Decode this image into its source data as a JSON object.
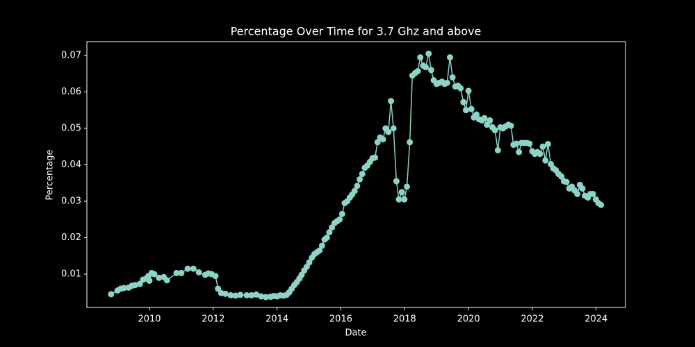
{
  "chart_data": {
    "type": "line",
    "title": "Percentage Over Time for 3.7 Ghz and above",
    "x_label": "Date",
    "y_label": "Percentage",
    "color": "#8dd3c7",
    "xlim": [
      2008.04,
      2024.92
    ],
    "ylim": [
      0.00086,
      0.0738
    ],
    "xticks": [
      2010,
      2012,
      2014,
      2016,
      2018,
      2020,
      2022,
      2024
    ],
    "yticks": [
      0.01,
      0.02,
      0.03,
      0.04,
      0.05,
      0.06,
      0.07
    ],
    "x": [
      2008.8,
      2009.0,
      2009.1,
      2009.2,
      2009.35,
      2009.45,
      2009.55,
      2009.7,
      2009.8,
      2009.9,
      2009.97,
      2010.0,
      2010.07,
      2010.15,
      2010.3,
      2010.45,
      2010.55,
      2010.85,
      2011.0,
      2011.2,
      2011.38,
      2011.55,
      2011.75,
      2011.85,
      2011.95,
      2012.07,
      2012.15,
      2012.25,
      2012.38,
      2012.55,
      2012.7,
      2012.85,
      2013.05,
      2013.2,
      2013.35,
      2013.5,
      2013.65,
      2013.8,
      2013.9,
      2014.0,
      2014.1,
      2014.2,
      2014.3,
      2014.38,
      2014.46,
      2014.54,
      2014.62,
      2014.7,
      2014.77,
      2014.85,
      2014.93,
      2015.01,
      2015.09,
      2015.17,
      2015.25,
      2015.33,
      2015.41,
      2015.49,
      2015.56,
      2015.64,
      2015.72,
      2015.8,
      2015.88,
      2015.96,
      2016.04,
      2016.12,
      2016.2,
      2016.28,
      2016.35,
      2016.43,
      2016.51,
      2016.59,
      2016.67,
      2016.75,
      2016.83,
      2016.91,
      2016.99,
      2017.07,
      2017.15,
      2017.23,
      2017.32,
      2017.4,
      2017.49,
      2017.57,
      2017.65,
      2017.74,
      2017.82,
      2017.91,
      2017.99,
      2018.07,
      2018.16,
      2018.24,
      2018.33,
      2018.41,
      2018.49,
      2018.58,
      2018.66,
      2018.75,
      2018.83,
      2018.91,
      2019.0,
      2019.08,
      2019.17,
      2019.25,
      2019.33,
      2019.42,
      2019.5,
      2019.59,
      2019.67,
      2019.75,
      2019.84,
      2019.92,
      2020.0,
      2020.09,
      2020.17,
      2020.25,
      2020.33,
      2020.42,
      2020.5,
      2020.58,
      2020.67,
      2020.75,
      2020.83,
      2020.92,
      2021.0,
      2021.08,
      2021.16,
      2021.25,
      2021.33,
      2021.41,
      2021.5,
      2021.58,
      2021.66,
      2021.75,
      2021.83,
      2021.91,
      2022.0,
      2022.08,
      2022.16,
      2022.24,
      2022.33,
      2022.41,
      2022.49,
      2022.58,
      2022.66,
      2022.74,
      2022.82,
      2022.91,
      2022.99,
      2023.07,
      2023.16,
      2023.24,
      2023.32,
      2023.41,
      2023.49,
      2023.57,
      2023.65,
      2023.74,
      2023.82,
      2023.9,
      2023.99,
      2024.07,
      2024.15
    ],
    "values": [
      0.0045,
      0.0055,
      0.006,
      0.0062,
      0.0063,
      0.0068,
      0.007,
      0.0073,
      0.0085,
      0.0088,
      0.0095,
      0.0082,
      0.0103,
      0.01,
      0.009,
      0.0092,
      0.0083,
      0.0103,
      0.0103,
      0.0115,
      0.0115,
      0.0105,
      0.0098,
      0.0102,
      0.01,
      0.0095,
      0.006,
      0.0048,
      0.0046,
      0.0042,
      0.0041,
      0.0043,
      0.0042,
      0.0042,
      0.0044,
      0.0039,
      0.0037,
      0.0038,
      0.004,
      0.0039,
      0.0042,
      0.0041,
      0.0043,
      0.005,
      0.006,
      0.007,
      0.0078,
      0.0088,
      0.0098,
      0.011,
      0.012,
      0.0132,
      0.0145,
      0.0155,
      0.016,
      0.0165,
      0.0178,
      0.0195,
      0.02,
      0.0215,
      0.0228,
      0.024,
      0.0245,
      0.025,
      0.0265,
      0.0295,
      0.03,
      0.031,
      0.0318,
      0.0328,
      0.0342,
      0.036,
      0.0375,
      0.0392,
      0.0398,
      0.0408,
      0.0418,
      0.042,
      0.0462,
      0.0475,
      0.047,
      0.05,
      0.049,
      0.0575,
      0.05,
      0.0355,
      0.0305,
      0.0325,
      0.0305,
      0.034,
      0.0462,
      0.0645,
      0.0652,
      0.0657,
      0.0695,
      0.0672,
      0.0668,
      0.0705,
      0.066,
      0.0632,
      0.0622,
      0.0625,
      0.0628,
      0.0622,
      0.0625,
      0.0695,
      0.064,
      0.0615,
      0.0617,
      0.061,
      0.0572,
      0.055,
      0.0603,
      0.0553,
      0.053,
      0.0538,
      0.0525,
      0.0522,
      0.0528,
      0.051,
      0.0522,
      0.0503,
      0.0495,
      0.044,
      0.0503,
      0.05,
      0.0505,
      0.051,
      0.0507,
      0.0455,
      0.0458,
      0.0435,
      0.046,
      0.046,
      0.046,
      0.0458,
      0.0437,
      0.043,
      0.0435,
      0.043,
      0.045,
      0.0412,
      0.0457,
      0.0402,
      0.039,
      0.0385,
      0.0375,
      0.0368,
      0.0355,
      0.0353,
      0.0335,
      0.034,
      0.033,
      0.032,
      0.0345,
      0.0335,
      0.0315,
      0.031,
      0.032,
      0.032,
      0.0305,
      0.0295,
      0.029
    ]
  }
}
